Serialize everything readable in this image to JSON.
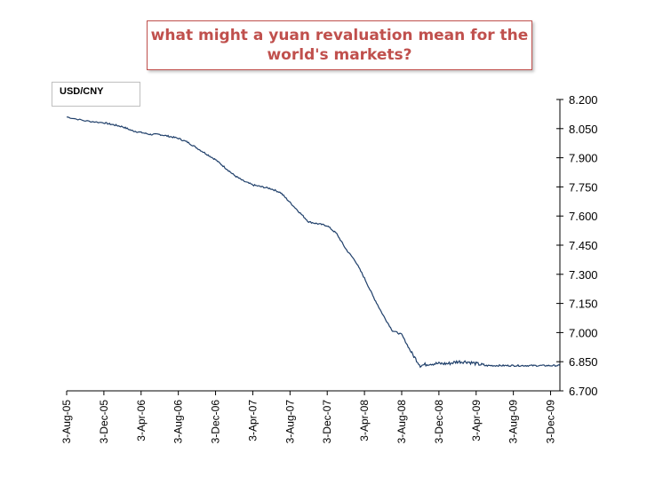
{
  "title": "what might a yuan revaluation mean for the world's markets?",
  "chart_data": {
    "type": "line",
    "series_label": "USD/CNY",
    "title": "what might a yuan revaluation mean for the world's markets?",
    "xlabel": "",
    "ylabel": "",
    "y_axis_position": "right",
    "ylim": [
      6.7,
      8.2
    ],
    "y_ticks": [
      "8.200",
      "8.050",
      "7.900",
      "7.750",
      "7.600",
      "7.450",
      "7.300",
      "7.150",
      "7.000",
      "6.850",
      "6.700"
    ],
    "x_ticks": [
      "3-Aug-05",
      "3-Dec-05",
      "3-Apr-06",
      "3-Aug-06",
      "3-Dec-06",
      "3-Apr-07",
      "3-Aug-07",
      "3-Dec-07",
      "3-Apr-08",
      "3-Aug-08",
      "3-Dec-08",
      "3-Apr-09",
      "3-Aug-09",
      "3-Dec-09"
    ],
    "x_range_months": [
      0,
      53
    ],
    "points": [
      [
        0,
        8.11
      ],
      [
        2,
        8.09
      ],
      [
        4,
        8.08
      ],
      [
        5,
        8.07
      ],
      [
        6,
        8.06
      ],
      [
        7,
        8.04
      ],
      [
        8,
        8.03
      ],
      [
        9,
        8.02
      ],
      [
        10,
        8.02
      ],
      [
        11,
        8.01
      ],
      [
        12,
        8.0
      ],
      [
        13,
        7.98
      ],
      [
        14,
        7.95
      ],
      [
        15,
        7.92
      ],
      [
        16,
        7.89
      ],
      [
        17,
        7.85
      ],
      [
        18,
        7.81
      ],
      [
        19,
        7.78
      ],
      [
        20,
        7.76
      ],
      [
        21,
        7.75
      ],
      [
        22,
        7.74
      ],
      [
        23,
        7.72
      ],
      [
        24,
        7.67
      ],
      [
        25,
        7.62
      ],
      [
        26,
        7.57
      ],
      [
        27,
        7.56
      ],
      [
        28,
        7.55
      ],
      [
        29,
        7.51
      ],
      [
        30,
        7.43
      ],
      [
        31,
        7.37
      ],
      [
        32,
        7.28
      ],
      [
        33,
        7.18
      ],
      [
        34,
        7.09
      ],
      [
        35,
        7.01
      ],
      [
        36,
        6.99
      ],
      [
        37,
        6.9
      ],
      [
        38,
        6.83
      ],
      [
        39,
        6.84
      ],
      [
        40,
        6.84
      ],
      [
        41,
        6.84
      ],
      [
        42,
        6.85
      ],
      [
        43,
        6.85
      ],
      [
        44,
        6.84
      ],
      [
        45,
        6.83
      ],
      [
        46,
        6.83
      ],
      [
        47,
        6.83
      ],
      [
        48,
        6.83
      ],
      [
        49,
        6.83
      ],
      [
        50,
        6.83
      ],
      [
        51,
        6.83
      ],
      [
        52,
        6.83
      ],
      [
        53,
        6.83
      ]
    ],
    "line_color": "#1f3f6a",
    "grid": false
  }
}
